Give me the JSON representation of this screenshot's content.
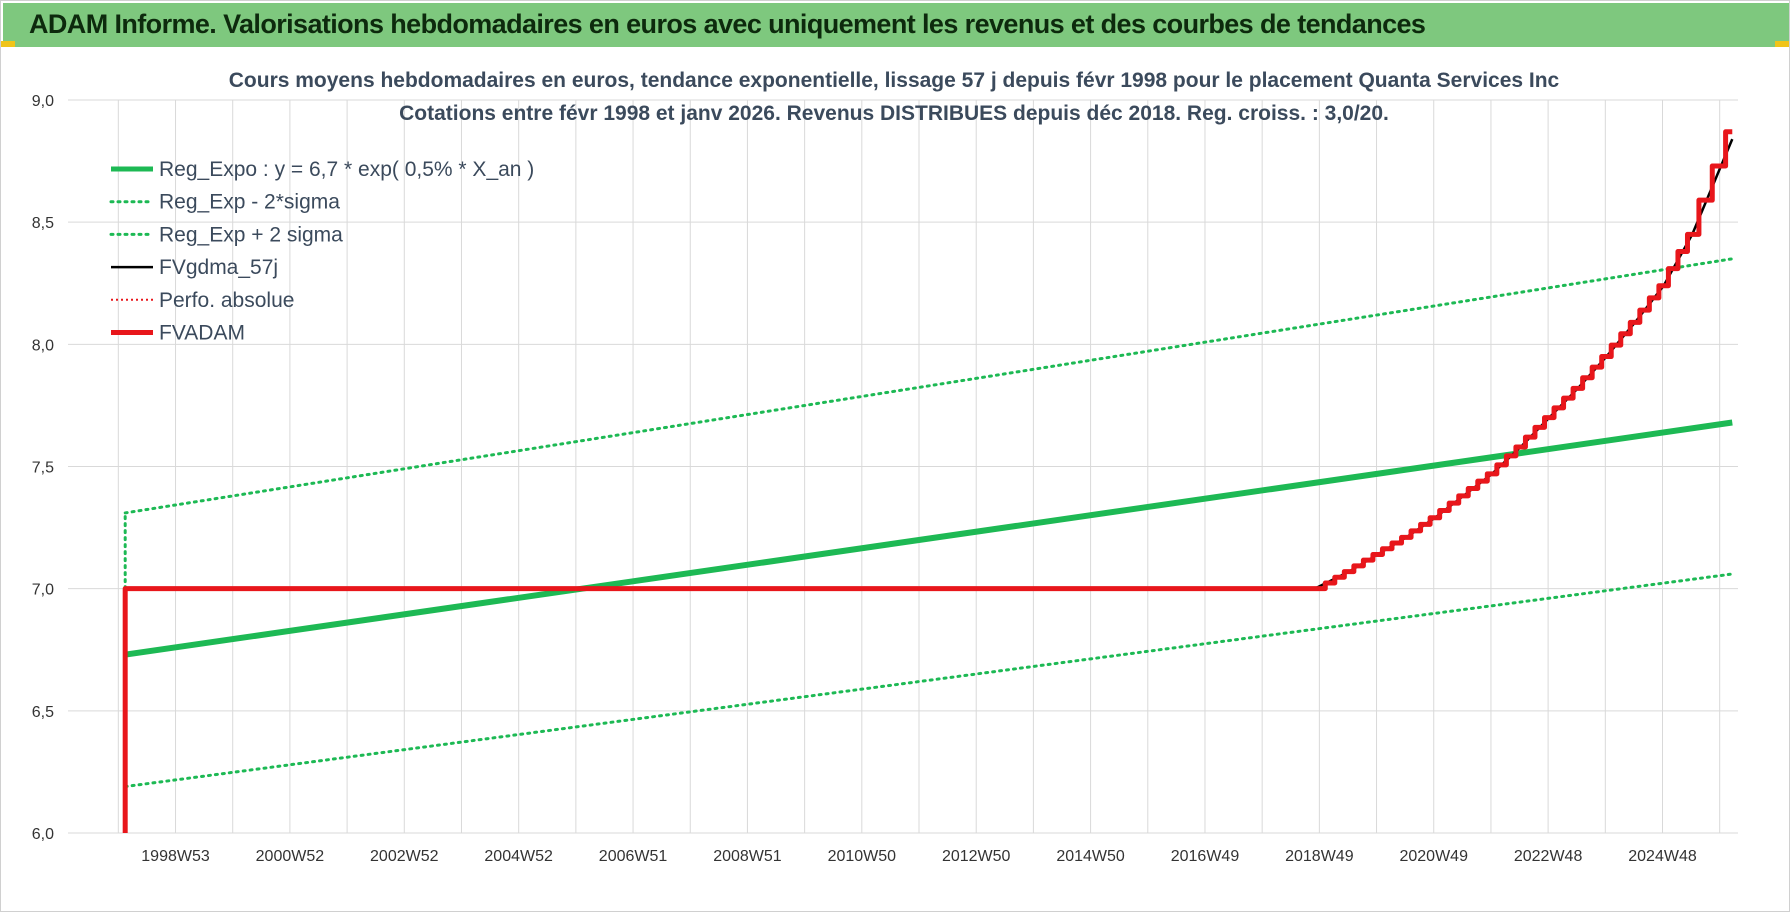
{
  "page": {
    "banner_title": "ADAM Informe. Valorisations hebdomadaires en euros avec uniquement les revenus et des courbes de tendances"
  },
  "colors": {
    "banner": "#7ec87e",
    "green": "#1db954",
    "red": "#e8161b",
    "black": "#000000",
    "grid": "#d9d9d9"
  },
  "chart_data": {
    "type": "line",
    "title_line1": "Cours moyens hebdomadaires en euros, tendance exponentielle, lissage 57 j depuis févr 1998 pour le placement Quanta Services Inc",
    "title_line2": "Cotations entre févr 1998 et janv 2026. Revenus DISTRIBUES depuis déc 2018. Reg. croiss. : 3,0/20.",
    "xlabel": "",
    "ylabel": "",
    "ylim": [
      6.0,
      9.0
    ],
    "y_ticks": [
      "6,0",
      "6,5",
      "7,0",
      "7,5",
      "8,0",
      "8,5",
      "9,0"
    ],
    "y_tick_values": [
      6.0,
      6.5,
      7.0,
      7.5,
      8.0,
      8.5,
      9.0
    ],
    "xlim": [
      1997.1,
      2026.3
    ],
    "x_tick_labels": [
      "1998W53",
      "2000W52",
      "2002W52",
      "2004W52",
      "2006W51",
      "2008W51",
      "2010W50",
      "2012W50",
      "2014W50",
      "2016W49",
      "2018W49",
      "2020W49",
      "2022W48",
      "2024W48"
    ],
    "x_tick_values": [
      1998.98,
      2000.98,
      2002.98,
      2004.98,
      2006.98,
      2008.98,
      2010.98,
      2012.98,
      2014.98,
      2016.98,
      2018.98,
      2020.98,
      2022.98,
      2024.98
    ],
    "grid": true,
    "legend_position": "top-left",
    "series": [
      {
        "name": "Reg_Expo : y = 6,7 * exp( 0,5% *  X_an )",
        "color": "#1db954",
        "style": "solid-thick",
        "x": [
          1998.1,
          2026.2
        ],
        "y": [
          6.73,
          7.68
        ]
      },
      {
        "name": "Reg_Exp - 2*sigma",
        "color": "#1db954",
        "style": "dotted",
        "x": [
          1998.1,
          2026.2
        ],
        "y": [
          6.19,
          7.06
        ]
      },
      {
        "name": "Reg_Exp + 2 sigma",
        "color": "#1db954",
        "style": "dotted",
        "x": [
          1998.1,
          2026.2
        ],
        "y": [
          7.31,
          8.35
        ]
      },
      {
        "name": "FVgdma_57j",
        "color": "#000000",
        "style": "solid",
        "x": [
          1998.1,
          1998.1,
          2018.9,
          2019.5,
          2020.0,
          2020.5,
          2021.0,
          2021.5,
          2022.0,
          2022.5,
          2023.0,
          2023.5,
          2024.0,
          2024.5,
          2025.0,
          2025.5,
          2026.2
        ],
        "y": [
          6.0,
          7.0,
          7.0,
          7.07,
          7.14,
          7.21,
          7.29,
          7.38,
          7.47,
          7.58,
          7.7,
          7.82,
          7.95,
          8.09,
          8.24,
          8.45,
          8.84
        ]
      },
      {
        "name": "Perfo. absolue",
        "color": "#e8161b",
        "style": "dotted-thin",
        "x": [],
        "y": []
      },
      {
        "name": "FVADAM",
        "color": "#e8161b",
        "style": "solid-thick-staircase",
        "x": [
          1998.1,
          1998.1,
          2019.0,
          2019.5,
          2020.0,
          2020.5,
          2021.0,
          2021.5,
          2022.0,
          2022.5,
          2023.0,
          2023.5,
          2024.0,
          2024.5,
          2025.0,
          2025.5,
          2026.2
        ],
        "y": [
          6.0,
          7.0,
          7.0,
          7.07,
          7.14,
          7.21,
          7.29,
          7.38,
          7.47,
          7.58,
          7.7,
          7.82,
          7.95,
          8.09,
          8.24,
          8.45,
          8.87
        ]
      }
    ]
  }
}
